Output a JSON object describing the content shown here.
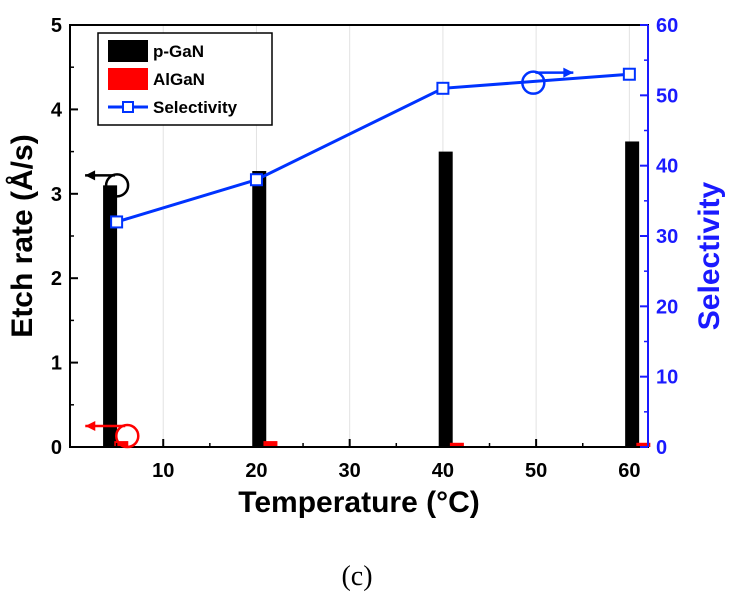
{
  "chart_data": {
    "type": "bar",
    "caption": "(c)",
    "xlabel": "Temperature (°C)",
    "ylabel": "Etch rate (Å/s)",
    "y2label": "Selectivity",
    "xlim": [
      0,
      62
    ],
    "ylim": [
      0,
      5
    ],
    "y2lim": [
      0,
      60
    ],
    "xticks": [
      "10",
      "20",
      "30",
      "40",
      "50",
      "60"
    ],
    "yticks": [
      "0",
      "1",
      "2",
      "3",
      "4",
      "5"
    ],
    "y2ticks": [
      "0",
      "10",
      "20",
      "30",
      "40",
      "50",
      "60"
    ],
    "legend_position": "top-left",
    "grid": true,
    "series": [
      {
        "name": "p-GaN",
        "type": "bar",
        "axis": "left",
        "color": "#000000",
        "x": [
          4.3,
          20.3,
          40.3,
          60.3
        ],
        "values": [
          3.1,
          3.27,
          3.5,
          3.62
        ]
      },
      {
        "name": "AlGaN",
        "type": "bar",
        "axis": "left",
        "color": "#ff0000",
        "x": [
          5.5,
          21.5,
          41.5,
          61.5
        ],
        "values": [
          0.07,
          0.07,
          0.05,
          0.05
        ]
      },
      {
        "name": "Selectivity",
        "type": "line",
        "axis": "right",
        "color": "#0033ff",
        "marker": "open-square",
        "x": [
          5,
          20,
          40,
          60
        ],
        "values": [
          32,
          38,
          51,
          53
        ]
      }
    ],
    "annotations": [
      {
        "kind": "circle-arrow",
        "points_to": "left-axis",
        "series": "p-GaN",
        "color": "#000000"
      },
      {
        "kind": "circle-arrow",
        "points_to": "left-axis",
        "series": "AlGaN",
        "color": "#ff0000"
      },
      {
        "kind": "circle-arrow",
        "points_to": "right-axis",
        "series": "Selectivity",
        "color": "#0033ff"
      }
    ]
  }
}
